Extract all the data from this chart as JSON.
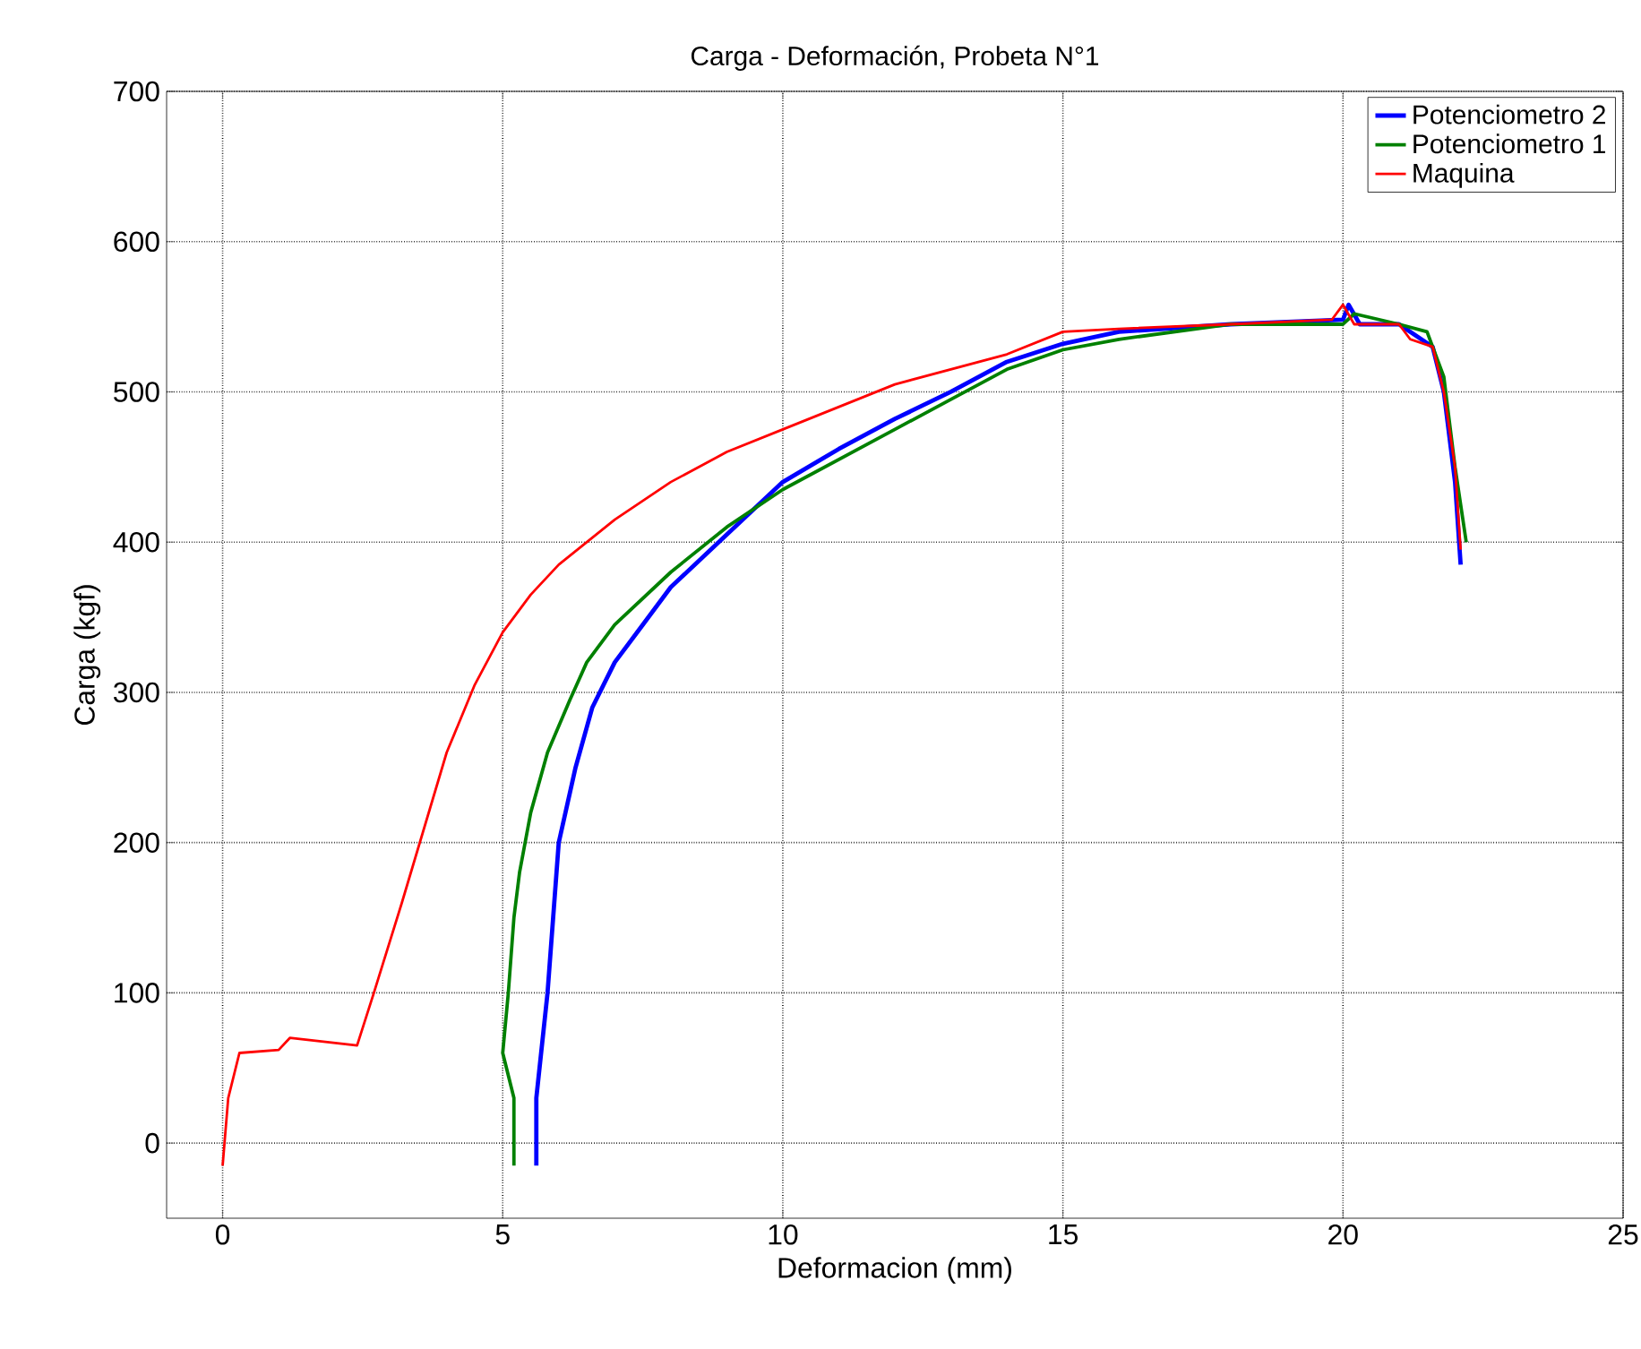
{
  "chart_data": {
    "type": "line",
    "title": "Carga - Deformación, Probeta N°1",
    "xlabel": "Deformacion (mm)",
    "ylabel": "Carga (kgf)",
    "xlim": [
      -1,
      25
    ],
    "ylim": [
      -50,
      700
    ],
    "xticks": [
      0,
      5,
      10,
      15,
      20,
      25
    ],
    "yticks": [
      0,
      100,
      200,
      300,
      400,
      500,
      600,
      700
    ],
    "grid": true,
    "legend": "top right",
    "marker": "none",
    "line_style": "solid",
    "series": [
      {
        "name": "Potenciometro 2",
        "color": "#0000ff",
        "x": [
          5.6,
          5.6,
          5.8,
          5.9,
          6,
          6.3,
          6.6,
          7,
          7.5,
          8,
          9,
          10,
          11,
          12,
          13,
          14,
          15,
          16,
          18,
          20,
          20.1,
          20.3,
          21,
          21.6,
          21.8,
          22,
          22.1
        ],
        "values": [
          -15,
          30,
          100,
          150,
          200,
          250,
          290,
          320,
          345,
          370,
          405,
          440,
          462,
          482,
          500,
          520,
          532,
          540,
          545,
          548,
          558,
          545,
          545,
          530,
          500,
          440,
          385
        ]
      },
      {
        "name": "Potenciometro 1",
        "color": "#008000",
        "x": [
          5.2,
          5.2,
          5,
          5.1,
          5.2,
          5.3,
          5.5,
          5.8,
          6.2,
          6.5,
          7,
          8,
          9,
          10,
          11,
          12,
          13,
          14,
          15,
          16,
          18,
          20,
          20.2,
          21,
          21.5,
          21.8,
          22,
          22.2
        ],
        "values": [
          -15,
          30,
          60,
          100,
          150,
          180,
          220,
          260,
          295,
          320,
          345,
          380,
          410,
          435,
          455,
          475,
          495,
          515,
          528,
          535,
          545,
          545,
          552,
          545,
          540,
          510,
          450,
          400
        ]
      },
      {
        "name": "Maquina",
        "color": "#ff0000",
        "x": [
          0,
          0.1,
          0.3,
          1,
          1.2,
          2.4,
          2.7,
          3.2,
          3.6,
          4,
          4.5,
          5,
          5.5,
          6,
          7,
          8,
          9,
          10,
          11,
          12,
          13,
          14,
          15,
          16,
          18,
          19.8,
          20,
          20.2,
          21,
          21.2,
          21.6,
          21.8,
          22,
          22.1
        ],
        "values": [
          -15,
          30,
          60,
          62,
          70,
          65,
          100,
          160,
          210,
          260,
          305,
          340,
          365,
          385,
          415,
          440,
          460,
          475,
          490,
          505,
          515,
          525,
          540,
          542,
          545,
          548,
          558,
          545,
          545,
          535,
          530,
          500,
          450,
          395
        ]
      }
    ]
  }
}
